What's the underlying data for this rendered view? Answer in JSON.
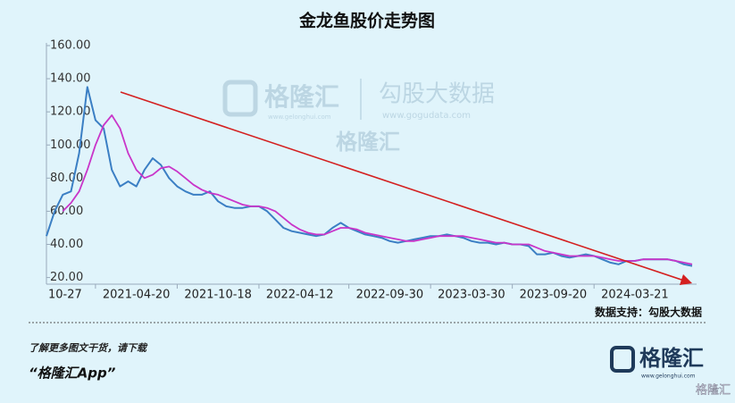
{
  "chart_data": {
    "type": "line",
    "title": "金龙鱼股价走势图",
    "categories": [
      "10-27",
      null,
      null,
      null,
      null,
      null,
      null,
      null,
      null,
      null,
      null,
      "2021-04-20",
      null,
      null,
      null,
      null,
      null,
      null,
      null,
      null,
      null,
      "2021-10-18",
      null,
      null,
      null,
      null,
      null,
      null,
      null,
      null,
      null,
      "2022-04-12",
      null,
      null,
      null,
      null,
      null,
      null,
      null,
      null,
      null,
      null,
      "2022-09-30",
      null,
      null,
      null,
      null,
      null,
      null,
      null,
      null,
      null,
      "2023-03-30",
      null,
      null,
      null,
      null,
      null,
      null,
      null,
      null,
      null,
      "2023-09-20",
      null,
      null,
      null,
      null,
      null,
      null,
      null,
      null,
      null,
      "2024-03-21",
      null,
      null,
      null,
      null,
      null,
      null,
      null
    ],
    "series": [
      {
        "color": "#3b7fc4",
        "values": [
          45,
          60,
          70,
          72,
          95,
          135,
          115,
          110,
          85,
          75,
          78,
          75,
          85,
          92,
          88,
          80,
          75,
          72,
          70,
          70,
          72,
          66,
          63,
          62,
          62,
          63,
          63,
          60,
          55,
          50,
          48,
          47,
          46,
          45,
          46,
          50,
          53,
          50,
          48,
          46,
          45,
          44,
          42,
          41,
          42,
          43,
          44,
          45,
          45,
          46,
          45,
          44,
          42,
          41,
          41,
          40,
          41,
          40,
          40,
          39,
          34,
          34,
          35,
          33,
          32,
          33,
          34,
          33,
          31,
          29,
          28,
          30,
          30,
          31,
          31,
          31,
          31,
          30,
          28,
          27
        ]
      },
      {
        "color": "#c935c9",
        "values": [
          null,
          null,
          60,
          65,
          72,
          85,
          100,
          112,
          118,
          110,
          95,
          85,
          80,
          82,
          86,
          87,
          84,
          80,
          76,
          73,
          71,
          70,
          68,
          66,
          64,
          63,
          63,
          62,
          60,
          56,
          52,
          49,
          47,
          46,
          46,
          48,
          50,
          50,
          49,
          47,
          46,
          45,
          44,
          43,
          42,
          42,
          43,
          44,
          45,
          45,
          45,
          45,
          44,
          43,
          42,
          41,
          41,
          40,
          40,
          40,
          38,
          36,
          35,
          34,
          33,
          33,
          33,
          33,
          32,
          31,
          30,
          30,
          30,
          31,
          31,
          31,
          31,
          30,
          29,
          28
        ]
      }
    ],
    "ylim": [
      16,
      160
    ],
    "yticks": [
      {
        "value": 20,
        "label": "20.00"
      },
      {
        "value": 40,
        "label": "40.00"
      },
      {
        "value": 60,
        "label": "60.00"
      },
      {
        "value": 80,
        "label": "80.00"
      },
      {
        "value": 100,
        "label": "100.00"
      },
      {
        "value": 120,
        "label": "120.00"
      },
      {
        "value": 140,
        "label": "140.00"
      },
      {
        "value": 160,
        "label": "160.00"
      }
    ],
    "watermark": {
      "brand": "格隆汇",
      "partner": "勾股大数据",
      "partner_url": "www.gogudata.com",
      "brand_url": "www.gelonghui.com"
    }
  },
  "footer": {
    "source": "数据支持：勾股大数据",
    "promo": "了解更多图文干货，请下载",
    "app": "“格隆汇App”",
    "logo": "格隆汇",
    "logo_url": "www.gelonghui.com",
    "corner": "格隆汇"
  }
}
